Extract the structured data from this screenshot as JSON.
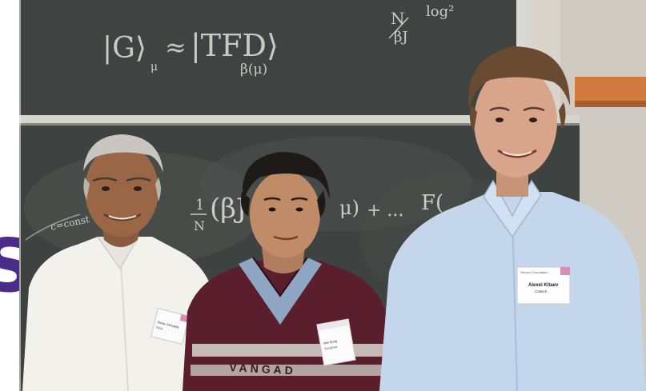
{
  "brand": {
    "partial_letter": "S",
    "color": "#4a2d8a"
  },
  "chalkboard": {
    "upper": {
      "eq_left": "|G⟩",
      "eq_sub_mu": "μ",
      "approx": "≈",
      "eq_right": "|TFD⟩",
      "eq_sub_beta": "β(μ)",
      "frac_num": "N",
      "frac_den": "βJ",
      "log_term": "log²"
    },
    "lower": {
      "coef_num": "1",
      "coef_den": "N",
      "paren_term": "(βJ",
      "mu_term": "μ)",
      "plus_term": "+ ...",
      "f_term": "F(",
      "side_note": "c=const"
    }
  },
  "people": {
    "left": {
      "badge_line1": "Shiraz Minwalla",
      "badge_line2": "TIFR"
    },
    "middle": {
      "badge_line1": "Wei Song",
      "badge_line2": "Tsinghua"
    },
    "right": {
      "badge_title": "Simons Foundation",
      "badge_name": "Alexei Kitaev",
      "badge_affil": "Caltech"
    },
    "sweater_text": "VANGAD"
  }
}
